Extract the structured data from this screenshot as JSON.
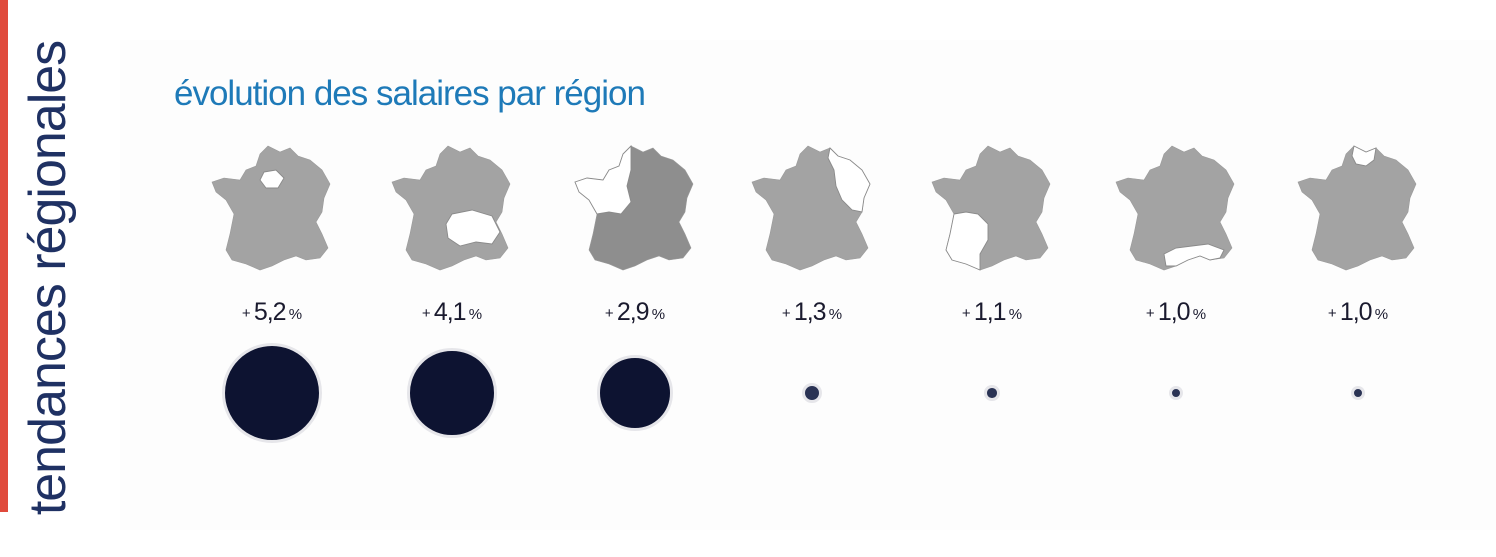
{
  "side_title": "tendances régionales",
  "chart_data": {
    "type": "bubble",
    "title": "évolution des salaires par région",
    "unit": "%",
    "values": [
      5.2,
      4.1,
      2.9,
      1.3,
      1.1,
      1.0,
      1.0
    ],
    "labels": [
      {
        "sign": "+",
        "number": "5,2",
        "unit": "%"
      },
      {
        "sign": "+",
        "number": "4,1",
        "unit": "%"
      },
      {
        "sign": "+",
        "number": "2,9",
        "unit": "%"
      },
      {
        "sign": "+",
        "number": "1,3",
        "unit": "%"
      },
      {
        "sign": "+",
        "number": "1,1",
        "unit": "%"
      },
      {
        "sign": "+",
        "number": "1,0",
        "unit": "%"
      },
      {
        "sign": "+",
        "number": "1,0",
        "unit": "%"
      }
    ],
    "highlighted_region": [
      "ile-de-france",
      "auvergne-rhone-alpes",
      "grand-ouest",
      "grand-est",
      "nouvelle-aquitaine",
      "occitanie-paca",
      "hauts-de-france"
    ]
  },
  "colors": {
    "accent": "#e04a3c",
    "side_title": "#1f3163",
    "chart_title": "#1e7ab8",
    "map_fill": "#a3a3a3",
    "map_fill_dark": "#8e8e8e",
    "bubble": "#0d1331"
  }
}
